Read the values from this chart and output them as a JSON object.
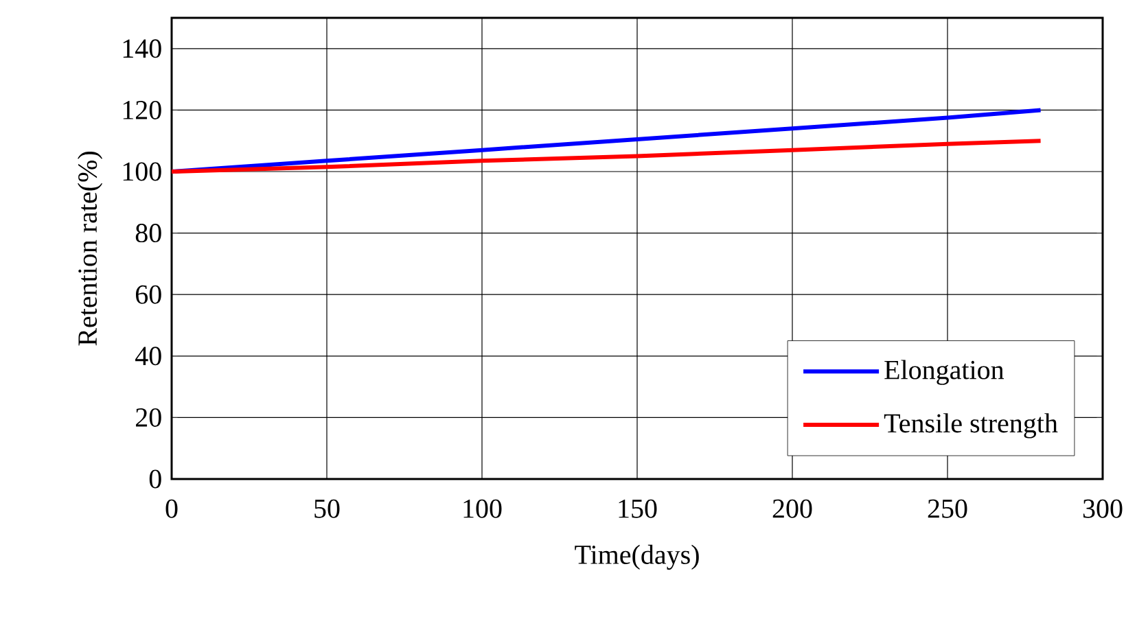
{
  "chart_data": {
    "type": "line",
    "xlabel": "Time(days)",
    "ylabel": "Retention rate(%)",
    "x": [
      0,
      50,
      100,
      150,
      200,
      250,
      280
    ],
    "series": [
      {
        "name": "Elongation",
        "color": "#0000ff",
        "values": [
          100,
          103.5,
          107,
          110.5,
          114,
          117.5,
          120
        ]
      },
      {
        "name": "Tensile strength",
        "color": "#ff0000",
        "values": [
          100,
          101.5,
          103.5,
          105,
          107,
          109,
          110
        ]
      }
    ],
    "xlim": [
      0,
      300
    ],
    "xticks": [
      0,
      50,
      100,
      150,
      200,
      250,
      300
    ],
    "ylim": [
      0,
      150
    ],
    "yticks": [
      0,
      20,
      40,
      60,
      80,
      100,
      120,
      140
    ],
    "grid": true,
    "legend": "bottom right",
    "marker": "none",
    "line_style": "solid"
  }
}
